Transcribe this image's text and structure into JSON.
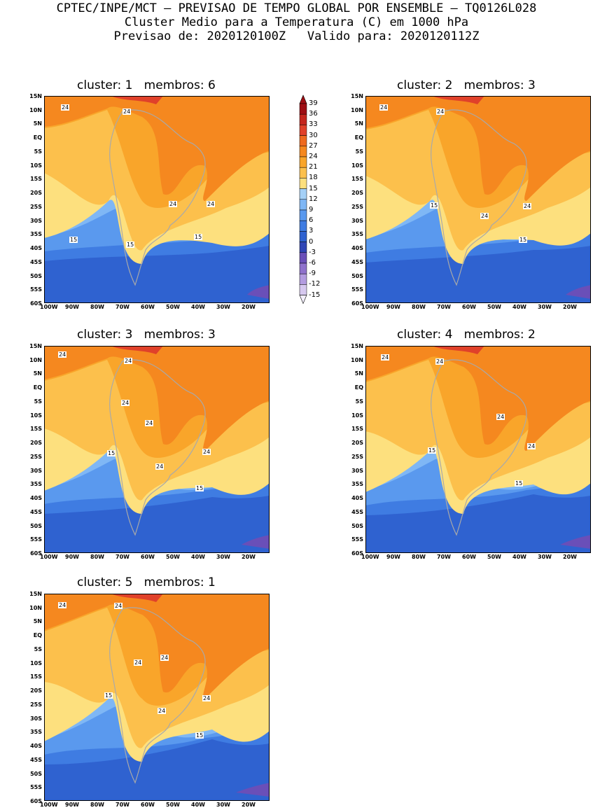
{
  "header": {
    "line1": "CPTEC/INPE/MCT – PREVISAO DE TEMPO GLOBAL POR ENSEMBLE – TQ0126L028",
    "line2": "Cluster Medio para a Temperatura (C) em 1000 hPa",
    "line3": "Previsao de: 2020120100Z   Valido para: 2020120112Z"
  },
  "lat_labels": [
    "15N",
    "10N",
    "5N",
    "EQ",
    "5S",
    "10S",
    "15S",
    "20S",
    "25S",
    "30S",
    "35S",
    "40S",
    "45S",
    "50S",
    "55S",
    "60S"
  ],
  "lon_labels": [
    "100W",
    "90W",
    "80W",
    "70W",
    "60W",
    "50W",
    "40W",
    "30W",
    "20W"
  ],
  "colorbar": {
    "ticks": [
      "39",
      "36",
      "33",
      "30",
      "27",
      "24",
      "21",
      "18",
      "15",
      "12",
      "9",
      "6",
      "3",
      "0",
      "-3",
      "-6",
      "-9",
      "-12",
      "-15"
    ],
    "colors": [
      "#9e0e14",
      "#c4261e",
      "#e0412a",
      "#ee6a1f",
      "#f5881f",
      "#f9a52a",
      "#fcc04c",
      "#fde07e",
      "#a4d0f7",
      "#7fb7f5",
      "#5a99ee",
      "#3f7ce2",
      "#2f62d0",
      "#3046b6",
      "#6a4fb8",
      "#8f72cc",
      "#b39ce0",
      "#d6c8ef"
    ]
  },
  "panels": [
    {
      "title": "cluster: 1   membros: 6",
      "contour_labels": [
        "24",
        "24",
        "24",
        "24",
        "15",
        "15",
        "15"
      ]
    },
    {
      "title": "cluster: 2   membros: 3",
      "contour_labels": [
        "24",
        "24",
        "24",
        "24",
        "15",
        "15"
      ]
    },
    {
      "title": "cluster: 3   membros: 3",
      "contour_labels": [
        "24",
        "24",
        "24",
        "24",
        "24",
        "24",
        "15",
        "15"
      ]
    },
    {
      "title": "cluster: 4   membros: 2",
      "contour_labels": [
        "24",
        "24",
        "24",
        "24",
        "15",
        "15"
      ]
    },
    {
      "title": "cluster: 5   membros: 1",
      "contour_labels": [
        "24",
        "24",
        "24",
        "24",
        "24",
        "24",
        "15",
        "15"
      ]
    }
  ]
}
